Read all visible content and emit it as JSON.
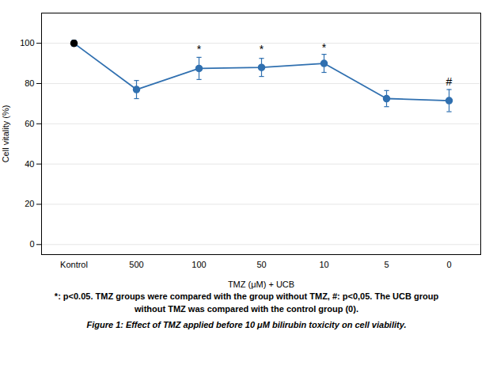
{
  "chart_data": {
    "type": "line",
    "categories": [
      "Kontrol",
      "500",
      "100",
      "50",
      "10",
      "5",
      "0"
    ],
    "values": [
      100.0,
      77.0,
      87.5,
      88.0,
      90.0,
      72.5,
      71.5
    ],
    "errors": [
      1.5,
      4.5,
      5.5,
      4.5,
      4.5,
      4.0,
      5.5
    ],
    "color": "#3070b0",
    "colors": [
      "#000000",
      "#3070b0",
      "#3070b0",
      "#3070b0",
      "#3070b0",
      "#3070b0",
      "#3070b0"
    ],
    "marker": "circle",
    "xlabel": "TMZ (μM) + UCB",
    "ylabel": "Cell vitality (%)",
    "ylim": [
      -5,
      115
    ],
    "yticks": [
      0,
      20,
      40,
      60,
      80,
      100
    ],
    "grid": true,
    "annotations": [
      {
        "x": 2,
        "y": 95,
        "text": "*"
      },
      {
        "x": 3,
        "y": 95,
        "text": "*"
      },
      {
        "x": 4,
        "y": 96,
        "text": "*"
      },
      {
        "x": 6,
        "y": 79,
        "text": "#"
      }
    ],
    "caption": [
      "*: p<0.05. TMZ groups were compared with the group without TMZ, #: p<0,05. The UCB group",
      "without TMZ was compared with the control group (0).",
      "Figure 1: Effect of TMZ applied before 10 μM bilirubin toxicity on cell viability."
    ]
  }
}
